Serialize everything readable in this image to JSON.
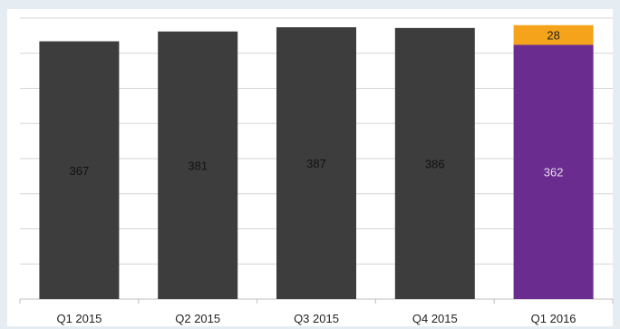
{
  "chart_data": {
    "type": "bar",
    "categories": [
      "Q1 2015",
      "Q2 2015",
      "Q3 2015",
      "Q4 2015",
      "Q1 2016"
    ],
    "series": [
      {
        "values": [
          367,
          381,
          387,
          386,
          362
        ],
        "color": "#3d3d3d",
        "highlight_color": "#6a2c8f"
      },
      {
        "values": [
          null,
          null,
          null,
          null,
          28
        ],
        "color": "#f5a31a"
      }
    ],
    "value_labels": [
      "367",
      "381",
      "387",
      "386",
      "362"
    ],
    "segment_labels": [
      "",
      "",
      "",
      "",
      "28"
    ],
    "ylim": [
      0,
      400
    ],
    "grid": true,
    "legend": "none"
  }
}
